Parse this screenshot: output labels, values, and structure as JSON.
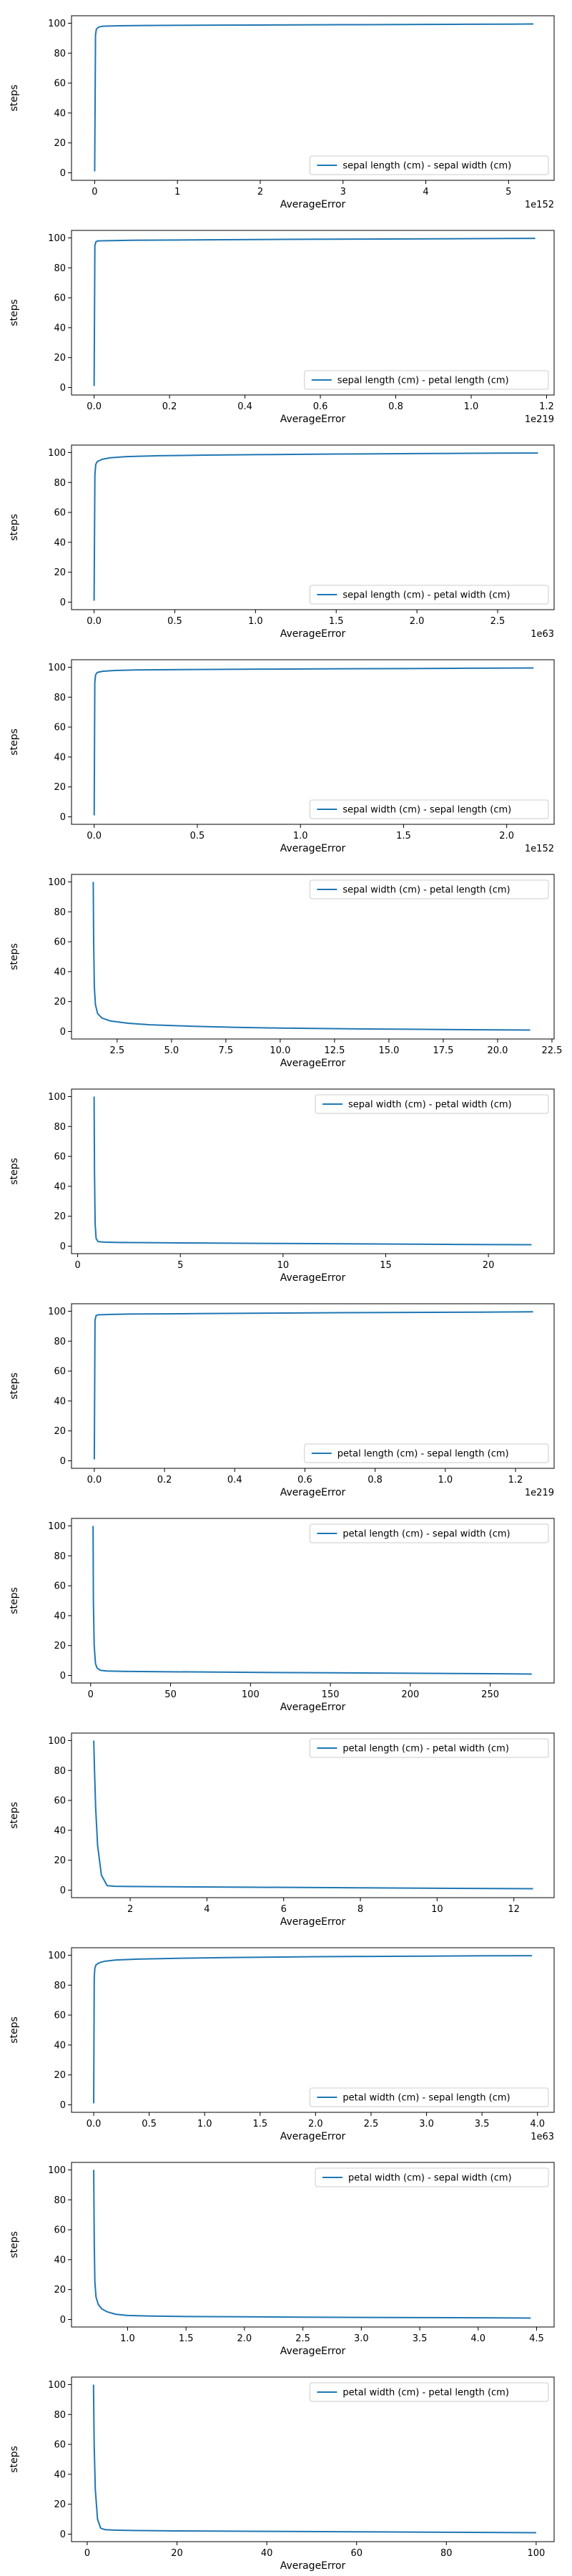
{
  "chart_data": [
    {
      "type": "line",
      "xlabel": "AverageError",
      "ylabel": "steps",
      "x_offset_label": "1e152",
      "xlim": [
        -0.28,
        5.55
      ],
      "ylim": [
        -5,
        105
      ],
      "xticks": [
        0,
        1,
        2,
        3,
        4,
        5
      ],
      "yticks": [
        0,
        20,
        40,
        60,
        80,
        100
      ],
      "legend": "lower-right",
      "series": [
        {
          "name": "sepal length (cm) - sepal width (cm)",
          "color": "#1f77b4",
          "x": [
            0,
            0.01,
            0.02,
            0.05,
            0.1,
            0.3,
            0.6,
            1.0,
            1.5,
            2.0,
            2.5,
            3.0,
            3.5,
            4.0,
            4.5,
            5.0,
            5.3
          ],
          "y": [
            1,
            92,
            96,
            97.5,
            98,
            98.3,
            98.5,
            98.6,
            98.7,
            98.8,
            98.9,
            99.0,
            99.1,
            99.2,
            99.3,
            99.4,
            99.5
          ]
        }
      ]
    },
    {
      "type": "line",
      "xlabel": "AverageError",
      "ylabel": "steps",
      "x_offset_label": "1e219",
      "xlim": [
        -0.06,
        1.22
      ],
      "ylim": [
        -5,
        105
      ],
      "xticks": [
        0.0,
        0.2,
        0.4,
        0.6,
        0.8,
        1.0,
        1.2
      ],
      "yticks": [
        0,
        20,
        40,
        60,
        80,
        100
      ],
      "legend": "lower-right",
      "series": [
        {
          "name": "sepal length (cm) - petal length (cm)",
          "color": "#1f77b4",
          "x": [
            0,
            0.002,
            0.005,
            0.01,
            0.05,
            0.1,
            0.3,
            0.5,
            0.7,
            0.9,
            1.1,
            1.17
          ],
          "y": [
            1,
            95,
            97.5,
            98,
            98.2,
            98.4,
            98.7,
            99.0,
            99.2,
            99.4,
            99.6,
            99.7
          ]
        }
      ]
    },
    {
      "type": "line",
      "xlabel": "AverageError",
      "ylabel": "steps",
      "x_offset_label": "1e63",
      "xlim": [
        -0.14,
        2.85
      ],
      "ylim": [
        -5,
        105
      ],
      "xticks": [
        0.0,
        0.5,
        1.0,
        1.5,
        2.0,
        2.5
      ],
      "yticks": [
        0,
        20,
        40,
        60,
        80,
        100
      ],
      "legend": "lower-right",
      "series": [
        {
          "name": "sepal length (cm) - petal width (cm)",
          "color": "#1f77b4",
          "x": [
            0,
            0.005,
            0.01,
            0.02,
            0.05,
            0.1,
            0.2,
            0.4,
            0.7,
            1.0,
            1.5,
            2.0,
            2.5,
            2.75
          ],
          "y": [
            1,
            85,
            92,
            94,
            95.5,
            96.5,
            97.3,
            97.9,
            98.3,
            98.6,
            99.0,
            99.3,
            99.6,
            99.7
          ]
        }
      ]
    },
    {
      "type": "line",
      "xlabel": "AverageError",
      "ylabel": "steps",
      "x_offset_label": "1e152",
      "xlim": [
        -0.11,
        2.23
      ],
      "ylim": [
        -5,
        105
      ],
      "xticks": [
        0.0,
        0.5,
        1.0,
        1.5,
        2.0
      ],
      "yticks": [
        0,
        20,
        40,
        60,
        80,
        100
      ],
      "legend": "lower-right",
      "series": [
        {
          "name": "sepal width (cm) - sepal length (cm)",
          "color": "#1f77b4",
          "x": [
            0,
            0.003,
            0.007,
            0.015,
            0.04,
            0.1,
            0.2,
            0.5,
            0.8,
            1.1,
            1.5,
            1.8,
            2.13
          ],
          "y": [
            1,
            90,
            95,
            96.5,
            97.3,
            97.8,
            98.2,
            98.5,
            98.7,
            98.9,
            99.1,
            99.3,
            99.5
          ]
        }
      ]
    },
    {
      "type": "line",
      "xlabel": "AverageError",
      "ylabel": "steps",
      "x_offset_label": "",
      "xlim": [
        0.4,
        22.6
      ],
      "ylim": [
        -5,
        105
      ],
      "xticks": [
        2.5,
        5.0,
        7.5,
        10.0,
        12.5,
        15.0,
        17.5,
        20.0,
        22.5
      ],
      "yticks": [
        0,
        20,
        40,
        60,
        80,
        100
      ],
      "legend": "upper-right",
      "series": [
        {
          "name": "sepal width (cm) - petal length (cm)",
          "color": "#1f77b4",
          "x": [
            1.4,
            1.42,
            1.45,
            1.5,
            1.6,
            1.8,
            2.2,
            3.0,
            4.0,
            6.0,
            8.0,
            10.0,
            12.0,
            14.0,
            16.0,
            18.0,
            20.0,
            21.5
          ],
          "y": [
            100,
            60,
            30,
            18,
            12,
            9,
            7,
            5.5,
            4.5,
            3.5,
            2.8,
            2.3,
            2.0,
            1.7,
            1.5,
            1.3,
            1.1,
            1
          ]
        }
      ]
    },
    {
      "type": "line",
      "xlabel": "AverageError",
      "ylabel": "steps",
      "x_offset_label": "",
      "xlim": [
        -0.3,
        23.2
      ],
      "ylim": [
        -5,
        105
      ],
      "xticks": [
        0,
        5,
        10,
        15,
        20
      ],
      "yticks": [
        0,
        20,
        40,
        60,
        80,
        100
      ],
      "legend": "upper-right",
      "series": [
        {
          "name": "sepal width (cm) - petal width (cm)",
          "color": "#1f77b4",
          "x": [
            0.8,
            0.82,
            0.85,
            0.9,
            1.0,
            1.3,
            2.0,
            4.0,
            6.0,
            10.0,
            14.0,
            18.0,
            22.1
          ],
          "y": [
            100,
            50,
            15,
            5,
            3,
            2.7,
            2.5,
            2.3,
            2.1,
            1.8,
            1.5,
            1.2,
            1
          ]
        }
      ]
    },
    {
      "type": "line",
      "xlabel": "AverageError",
      "ylabel": "steps",
      "x_offset_label": "1e219",
      "xlim": [
        -0.065,
        1.31
      ],
      "ylim": [
        -5,
        105
      ],
      "xticks": [
        0.0,
        0.2,
        0.4,
        0.6,
        0.8,
        1.0,
        1.2
      ],
      "yticks": [
        0,
        20,
        40,
        60,
        80,
        100
      ],
      "legend": "lower-right",
      "series": [
        {
          "name": "petal length (cm) - sepal length (cm)",
          "color": "#1f77b4",
          "x": [
            0,
            0.002,
            0.005,
            0.01,
            0.05,
            0.1,
            0.3,
            0.5,
            0.7,
            0.9,
            1.1,
            1.25
          ],
          "y": [
            1,
            94,
            97,
            97.6,
            97.9,
            98.1,
            98.4,
            98.7,
            99.0,
            99.2,
            99.4,
            99.6
          ]
        }
      ]
    },
    {
      "type": "line",
      "xlabel": "AverageError",
      "ylabel": "steps",
      "x_offset_label": "",
      "xlim": [
        -12,
        290
      ],
      "ylim": [
        -5,
        105
      ],
      "xticks": [
        0,
        50,
        100,
        150,
        200,
        250
      ],
      "yticks": [
        0,
        20,
        40,
        60,
        80,
        100
      ],
      "legend": "upper-right",
      "series": [
        {
          "name": "petal length (cm) - sepal width (cm)",
          "color": "#1f77b4",
          "x": [
            1.5,
            1.7,
            2.2,
            3.0,
            4.0,
            6.0,
            10.0,
            20.0,
            50.0,
            100.0,
            150.0,
            200.0,
            250.0,
            276.0
          ],
          "y": [
            100,
            50,
            20,
            8,
            5,
            3.5,
            3,
            2.8,
            2.5,
            2.1,
            1.8,
            1.5,
            1.2,
            1
          ]
        }
      ]
    },
    {
      "type": "line",
      "xlabel": "AverageError",
      "ylabel": "steps",
      "x_offset_label": "",
      "xlim": [
        0.47,
        13.05
      ],
      "ylim": [
        -5,
        105
      ],
      "xticks": [
        2,
        4,
        6,
        8,
        10,
        12
      ],
      "yticks": [
        0,
        20,
        40,
        60,
        80,
        100
      ],
      "legend": "upper-right",
      "series": [
        {
          "name": "petal length (cm) - petal width (cm)",
          "color": "#1f77b4",
          "x": [
            1.05,
            1.07,
            1.1,
            1.15,
            1.25,
            1.4,
            1.6,
            2.0,
            3.0,
            5.0,
            8.0,
            10.0,
            12.5
          ],
          "y": [
            100,
            80,
            55,
            30,
            10,
            3,
            2.6,
            2.5,
            2.3,
            2.0,
            1.6,
            1.3,
            1
          ]
        }
      ]
    },
    {
      "type": "line",
      "xlabel": "AverageError",
      "ylabel": "steps",
      "x_offset_label": "1e63",
      "xlim": [
        -0.2,
        4.15
      ],
      "ylim": [
        -5,
        105
      ],
      "xticks": [
        0.0,
        0.5,
        1.0,
        1.5,
        2.0,
        2.5,
        3.0,
        3.5,
        4.0
      ],
      "yticks": [
        0,
        20,
        40,
        60,
        80,
        100
      ],
      "legend": "lower-right",
      "series": [
        {
          "name": "petal width (cm) - sepal length (cm)",
          "color": "#1f77b4",
          "x": [
            0,
            0.005,
            0.01,
            0.02,
            0.05,
            0.1,
            0.2,
            0.4,
            0.8,
            1.2,
            1.6,
            2.0,
            2.5,
            3.0,
            3.5,
            3.95
          ],
          "y": [
            1,
            85,
            91,
            93.5,
            95,
            96,
            96.8,
            97.4,
            98.0,
            98.4,
            98.7,
            99.0,
            99.2,
            99.4,
            99.6,
            99.7
          ]
        }
      ]
    },
    {
      "type": "line",
      "xlabel": "AverageError",
      "ylabel": "steps",
      "x_offset_label": "",
      "xlim": [
        0.52,
        4.65
      ],
      "ylim": [
        -5,
        105
      ],
      "xticks": [
        1.0,
        1.5,
        2.0,
        2.5,
        3.0,
        3.5,
        4.0,
        4.5
      ],
      "yticks": [
        0,
        20,
        40,
        60,
        80,
        100
      ],
      "legend": "upper-right",
      "series": [
        {
          "name": "petal width (cm) - sepal width (cm)",
          "color": "#1f77b4",
          "x": [
            0.71,
            0.715,
            0.72,
            0.73,
            0.75,
            0.78,
            0.83,
            0.9,
            1.0,
            1.2,
            1.5,
            2.0,
            2.5,
            3.0,
            3.5,
            4.0,
            4.45
          ],
          "y": [
            100,
            50,
            25,
            15,
            10,
            7,
            5,
            3.5,
            2.7,
            2.3,
            2.0,
            1.8,
            1.6,
            1.4,
            1.3,
            1.15,
            1
          ]
        }
      ]
    },
    {
      "type": "line",
      "xlabel": "AverageError",
      "ylabel": "steps",
      "x_offset_label": "",
      "xlim": [
        -3.5,
        104
      ],
      "ylim": [
        -5,
        105
      ],
      "xticks": [
        0,
        20,
        40,
        60,
        80,
        100
      ],
      "yticks": [
        0,
        20,
        40,
        60,
        80,
        100
      ],
      "legend": "upper-right",
      "series": [
        {
          "name": "petal width (cm) - petal length (cm)",
          "color": "#1f77b4",
          "x": [
            1.4,
            1.55,
            1.8,
            2.3,
            3.0,
            4.0,
            6.0,
            10.0,
            20.0,
            40.0,
            60.0,
            80.0,
            100.0
          ],
          "y": [
            100,
            60,
            30,
            10,
            4,
            3,
            2.7,
            2.5,
            2.2,
            1.9,
            1.6,
            1.3,
            1
          ]
        }
      ]
    }
  ]
}
